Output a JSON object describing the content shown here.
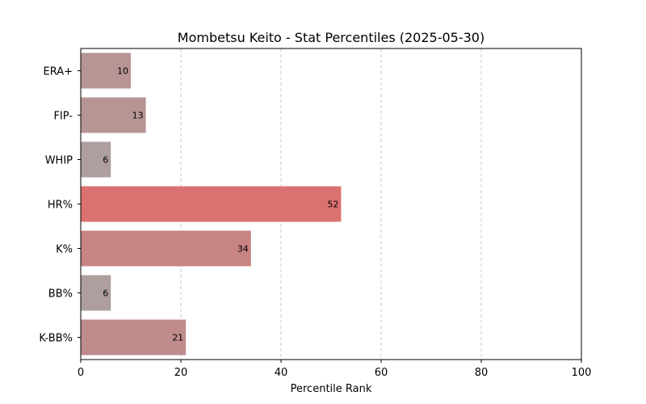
{
  "chart_data": {
    "type": "bar",
    "orientation": "horizontal",
    "title": "Mombetsu Keito - Stat Percentiles (2025-05-30)",
    "xlabel": "Percentile Rank",
    "ylabel": "",
    "xlim": [
      0,
      100
    ],
    "xticks": [
      0,
      20,
      40,
      60,
      80,
      100
    ],
    "grid": "x, dashed",
    "categories": [
      "ERA+",
      "FIP-",
      "WHIP",
      "HR%",
      "K%",
      "BB%",
      "K-BB%"
    ],
    "values": [
      10,
      13,
      6,
      52,
      34,
      6,
      21
    ],
    "colors": [
      "#b89595",
      "#b89595",
      "#ae9e9e",
      "#dc7171",
      "#c88383",
      "#ae9e9e",
      "#c08b8b"
    ]
  }
}
